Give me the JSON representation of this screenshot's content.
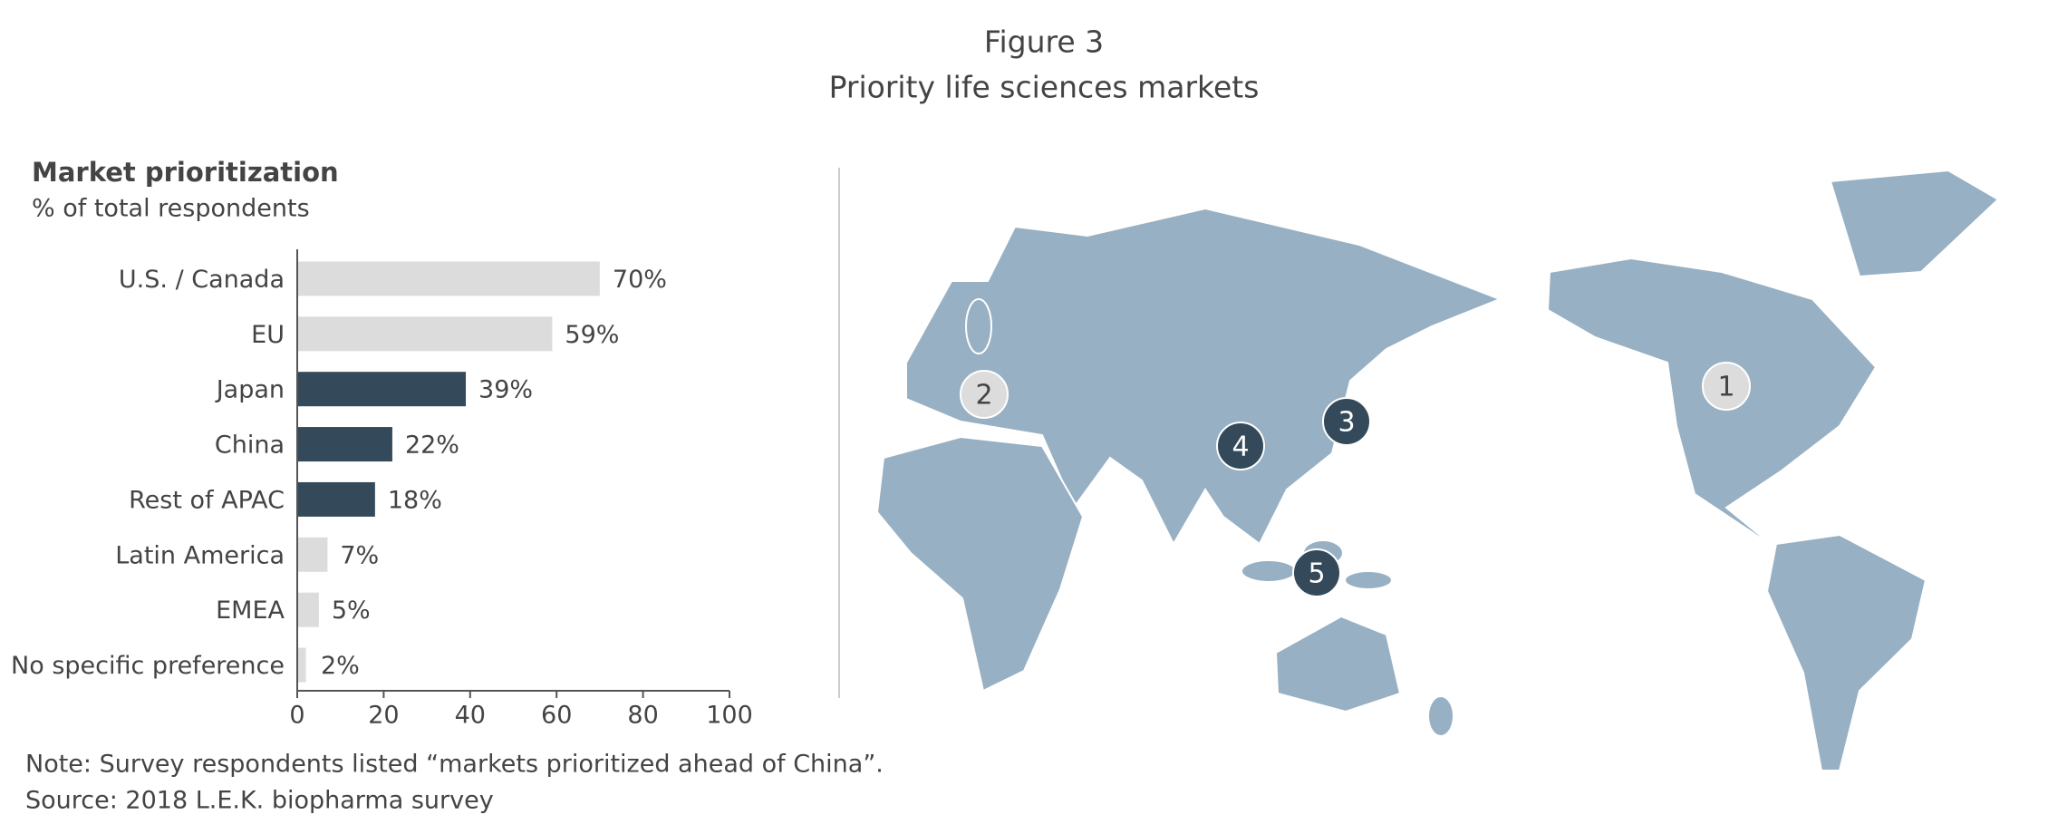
{
  "figure": {
    "label": "Figure 3",
    "title": "Priority life sciences markets"
  },
  "chart_data": {
    "type": "bar",
    "orientation": "horizontal",
    "title": "Market prioritization",
    "subtitle": "% of total respondents",
    "categories": [
      "U.S. / Canada",
      "EU",
      "Japan",
      "China",
      "Rest of APAC",
      "Latin America",
      "EMEA",
      "No specific preference"
    ],
    "values": [
      70,
      59,
      39,
      22,
      18,
      7,
      5,
      2
    ],
    "value_labels": [
      "70%",
      "59%",
      "39%",
      "22%",
      "18%",
      "7%",
      "5%",
      "2%"
    ],
    "colors": [
      "#dcdcdc",
      "#dcdcdc",
      "#344a5a",
      "#344a5a",
      "#344a5a",
      "#dcdcdc",
      "#dcdcdc",
      "#dcdcdc"
    ],
    "xlim": [
      0,
      100
    ],
    "xticks": [
      0,
      20,
      40,
      60,
      80,
      100
    ]
  },
  "notes": [
    "Note: Survey respondents listed “markets prioritized ahead of China”.",
    "Source: 2018 L.E.K. biopharma survey"
  ],
  "map": {
    "markers": [
      {
        "label": "1",
        "color": "#dcdcdc"
      },
      {
        "label": "2",
        "color": "#dcdcdc"
      },
      {
        "label": "3",
        "color": "#344a5a"
      },
      {
        "label": "4",
        "color": "#344a5a"
      },
      {
        "label": "5",
        "color": "#344a5a"
      }
    ]
  }
}
